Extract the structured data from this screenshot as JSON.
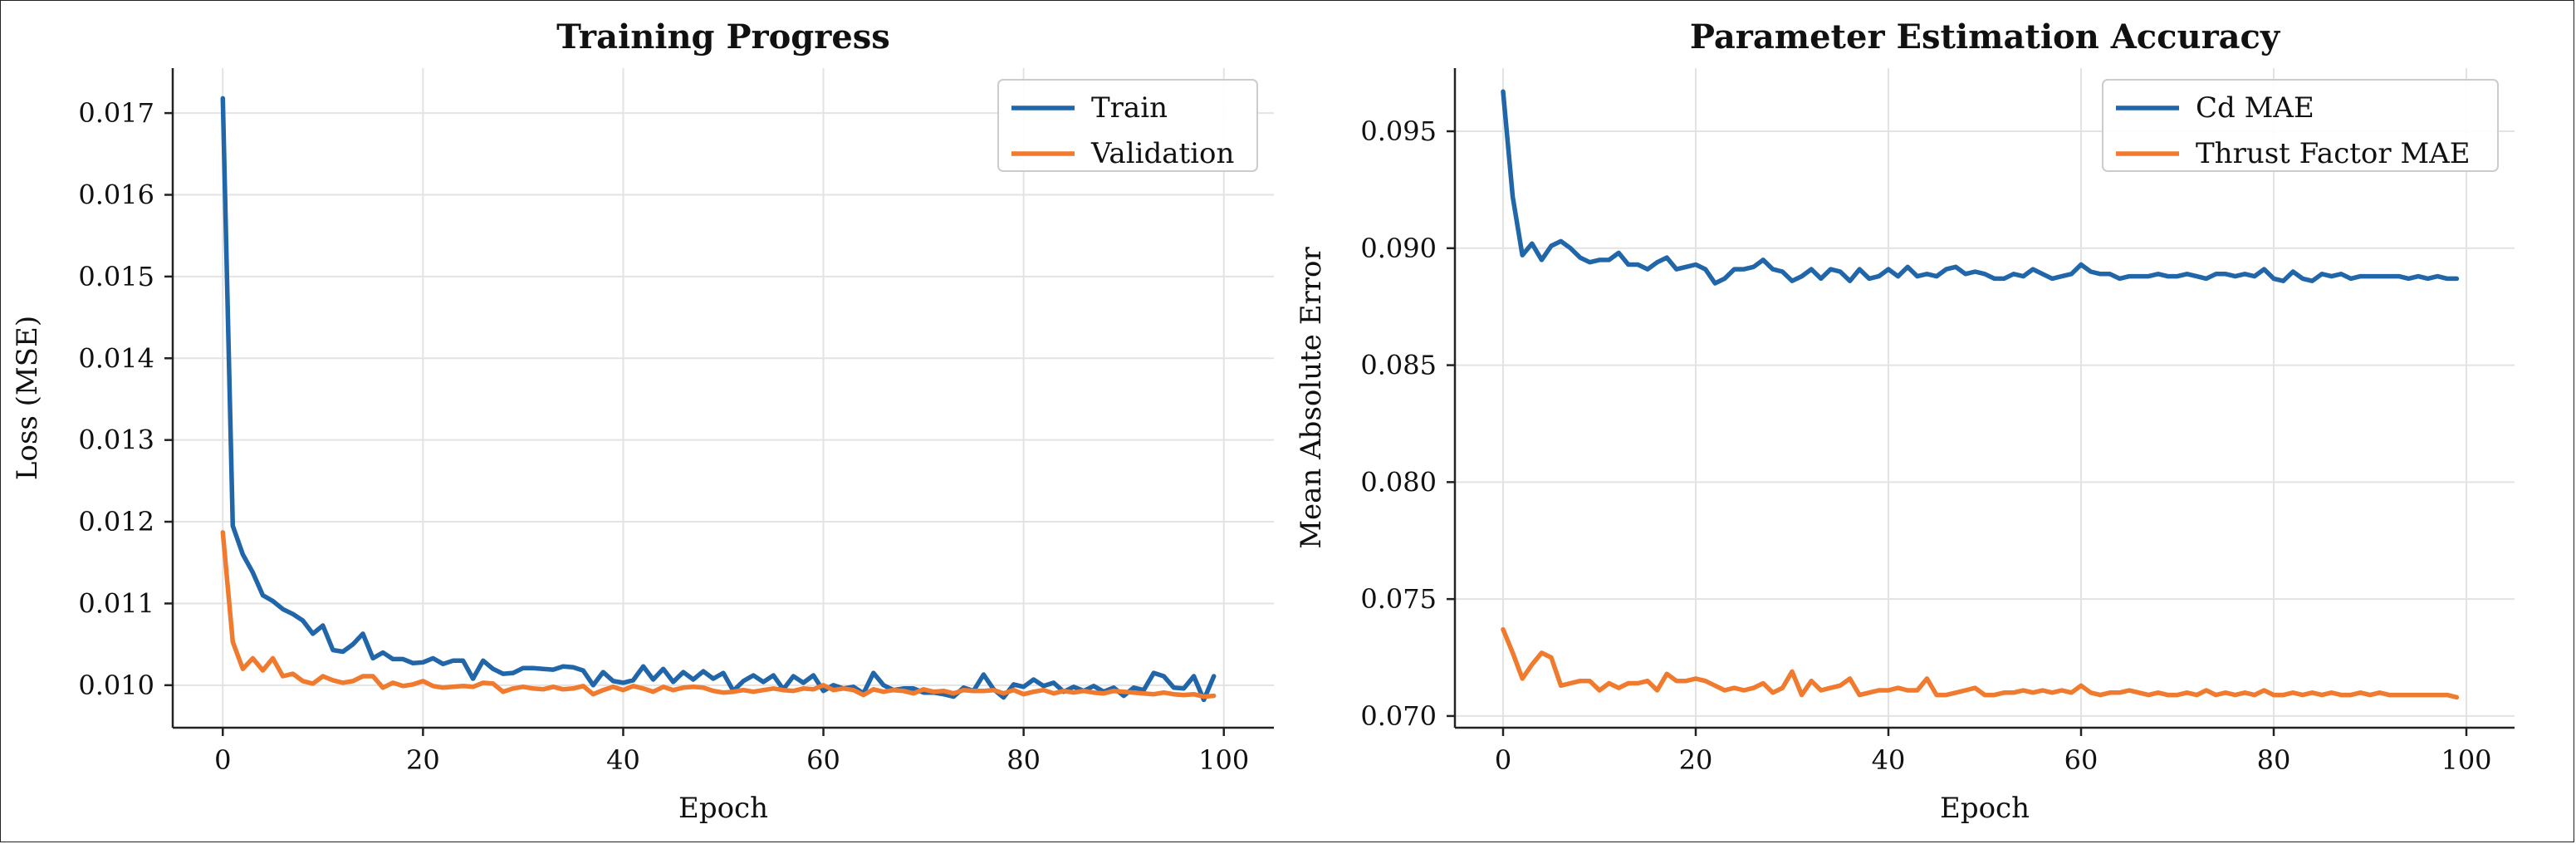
{
  "chart_data": [
    {
      "type": "line",
      "title": "Training Progress",
      "xlabel": "Epoch",
      "ylabel": "Loss (MSE)",
      "xlim": [
        -5,
        105
      ],
      "ylim": [
        0.00948,
        0.01755
      ],
      "xticks": [
        0,
        20,
        40,
        60,
        80,
        100
      ],
      "yticks": [
        0.01,
        0.011,
        0.012,
        0.013,
        0.014,
        0.015,
        0.016,
        0.017
      ],
      "ytick_labels": [
        "0.010",
        "0.011",
        "0.012",
        "0.013",
        "0.014",
        "0.015",
        "0.016",
        "0.017"
      ],
      "grid": true,
      "legend": "top-right",
      "series": [
        {
          "name": "Train",
          "color": "#2066a8",
          "values": [
            0.01718,
            0.01195,
            0.0116,
            0.01138,
            0.0111,
            0.01103,
            0.01093,
            0.01087,
            0.01079,
            0.01063,
            0.01073,
            0.01043,
            0.01041,
            0.0105,
            0.01063,
            0.01033,
            0.0104,
            0.01032,
            0.01032,
            0.01027,
            0.01028,
            0.01033,
            0.01026,
            0.0103,
            0.0103,
            0.01008,
            0.0103,
            0.0102,
            0.01014,
            0.01015,
            0.01021,
            0.01021,
            0.0102,
            0.01019,
            0.01023,
            0.01022,
            0.01018,
            0.01,
            0.01016,
            0.01005,
            0.01003,
            0.01006,
            0.01023,
            0.01007,
            0.0102,
            0.01004,
            0.01016,
            0.01007,
            0.01017,
            0.01008,
            0.01015,
            0.00993,
            0.01005,
            0.01012,
            0.01004,
            0.01012,
            0.00995,
            0.01011,
            0.01003,
            0.01012,
            0.00993,
            0.01,
            0.00996,
            0.00998,
            0.0099,
            0.01015,
            0.01,
            0.00994,
            0.00996,
            0.00996,
            0.00991,
            0.00991,
            0.00989,
            0.00986,
            0.00997,
            0.00993,
            0.01013,
            0.00995,
            0.00985,
            0.01001,
            0.00998,
            0.01007,
            0.00999,
            0.01003,
            0.00992,
            0.00998,
            0.00993,
            0.00999,
            0.00992,
            0.00997,
            0.00987,
            0.00997,
            0.00994,
            0.01015,
            0.01011,
            0.00997,
            0.00996,
            0.01011,
            0.00982,
            0.01011
          ]
        },
        {
          "name": "Validation",
          "color": "#f07a2e",
          "values": [
            0.01187,
            0.01053,
            0.0102,
            0.01033,
            0.01018,
            0.01033,
            0.01011,
            0.01014,
            0.01005,
            0.01002,
            0.01011,
            0.01006,
            0.01003,
            0.01005,
            0.01011,
            0.01011,
            0.00997,
            0.01003,
            0.00999,
            0.01001,
            0.01005,
            0.00999,
            0.00997,
            0.00998,
            0.00999,
            0.00998,
            0.01003,
            0.01002,
            0.00992,
            0.00996,
            0.00998,
            0.00996,
            0.00995,
            0.00998,
            0.00995,
            0.00996,
            0.00999,
            0.00989,
            0.00994,
            0.00998,
            0.00994,
            0.00999,
            0.00996,
            0.00992,
            0.00998,
            0.00994,
            0.00997,
            0.00998,
            0.00997,
            0.00993,
            0.00991,
            0.00992,
            0.00994,
            0.00992,
            0.00994,
            0.00996,
            0.00994,
            0.00993,
            0.00996,
            0.00995,
            0.01,
            0.00994,
            0.00996,
            0.00994,
            0.00988,
            0.00995,
            0.00992,
            0.00994,
            0.00993,
            0.0099,
            0.00995,
            0.00992,
            0.00993,
            0.0099,
            0.00994,
            0.00993,
            0.00993,
            0.00994,
            0.0099,
            0.00994,
            0.00989,
            0.00992,
            0.00994,
            0.0099,
            0.00993,
            0.00991,
            0.00993,
            0.00991,
            0.0099,
            0.00993,
            0.00992,
            0.00991,
            0.0099,
            0.00989,
            0.00991,
            0.00989,
            0.00988,
            0.00989,
            0.00986,
            0.00987
          ]
        }
      ]
    },
    {
      "type": "line",
      "title": "Parameter Estimation Accuracy",
      "xlabel": "Epoch",
      "ylabel": "Mean Absolute Error",
      "xlim": [
        -5,
        105
      ],
      "ylim": [
        0.0695,
        0.0977
      ],
      "xticks": [
        0,
        20,
        40,
        60,
        80,
        100
      ],
      "yticks": [
        0.07,
        0.075,
        0.08,
        0.085,
        0.09,
        0.095
      ],
      "ytick_labels": [
        "0.070",
        "0.075",
        "0.080",
        "0.085",
        "0.090",
        "0.095"
      ],
      "grid": true,
      "legend": "top-right",
      "series": [
        {
          "name": "Cd MAE",
          "color": "#2066a8",
          "values": [
            0.0967,
            0.0922,
            0.0897,
            0.0902,
            0.0895,
            0.0901,
            0.0903,
            0.09,
            0.0896,
            0.0894,
            0.0895,
            0.0895,
            0.0898,
            0.0893,
            0.0893,
            0.0891,
            0.0894,
            0.0896,
            0.0891,
            0.0892,
            0.0893,
            0.0891,
            0.0885,
            0.0887,
            0.0891,
            0.0891,
            0.0892,
            0.0895,
            0.0891,
            0.089,
            0.0886,
            0.0888,
            0.0891,
            0.0887,
            0.0891,
            0.089,
            0.0886,
            0.0891,
            0.0887,
            0.0888,
            0.0891,
            0.0888,
            0.0892,
            0.0888,
            0.0889,
            0.0888,
            0.0891,
            0.0892,
            0.0889,
            0.089,
            0.0889,
            0.0887,
            0.0887,
            0.0889,
            0.0888,
            0.0891,
            0.0889,
            0.0887,
            0.0888,
            0.0889,
            0.0893,
            0.089,
            0.0889,
            0.0889,
            0.0887,
            0.0888,
            0.0888,
            0.0888,
            0.0889,
            0.0888,
            0.0888,
            0.0889,
            0.0888,
            0.0887,
            0.0889,
            0.0889,
            0.0888,
            0.0889,
            0.0888,
            0.0891,
            0.0887,
            0.0886,
            0.089,
            0.0887,
            0.0886,
            0.0889,
            0.0888,
            0.0889,
            0.0887,
            0.0888,
            0.0888,
            0.0888,
            0.0888,
            0.0888,
            0.0887,
            0.0888,
            0.0887,
            0.0888,
            0.0887,
            0.0887
          ]
        },
        {
          "name": "Thrust Factor MAE",
          "color": "#f07a2e",
          "values": [
            0.0737,
            0.0727,
            0.0716,
            0.0722,
            0.0727,
            0.0725,
            0.0713,
            0.0714,
            0.0715,
            0.0715,
            0.0711,
            0.0714,
            0.0712,
            0.0714,
            0.0714,
            0.0715,
            0.0711,
            0.0718,
            0.0715,
            0.0715,
            0.0716,
            0.0715,
            0.0713,
            0.0711,
            0.0712,
            0.0711,
            0.0712,
            0.0714,
            0.071,
            0.0712,
            0.0719,
            0.0709,
            0.0715,
            0.0711,
            0.0712,
            0.0713,
            0.0716,
            0.0709,
            0.071,
            0.0711,
            0.0711,
            0.0712,
            0.0711,
            0.0711,
            0.0716,
            0.0709,
            0.0709,
            0.071,
            0.0711,
            0.0712,
            0.0709,
            0.0709,
            0.071,
            0.071,
            0.0711,
            0.071,
            0.0711,
            0.071,
            0.0711,
            0.071,
            0.0713,
            0.071,
            0.0709,
            0.071,
            0.071,
            0.0711,
            0.071,
            0.0709,
            0.071,
            0.0709,
            0.0709,
            0.071,
            0.0709,
            0.0711,
            0.0709,
            0.071,
            0.0709,
            0.071,
            0.0709,
            0.0711,
            0.0709,
            0.0709,
            0.071,
            0.0709,
            0.071,
            0.0709,
            0.071,
            0.0709,
            0.0709,
            0.071,
            0.0709,
            0.071,
            0.0709,
            0.0709,
            0.0709,
            0.0709,
            0.0709,
            0.0709,
            0.0709,
            0.0708
          ]
        }
      ]
    }
  ]
}
